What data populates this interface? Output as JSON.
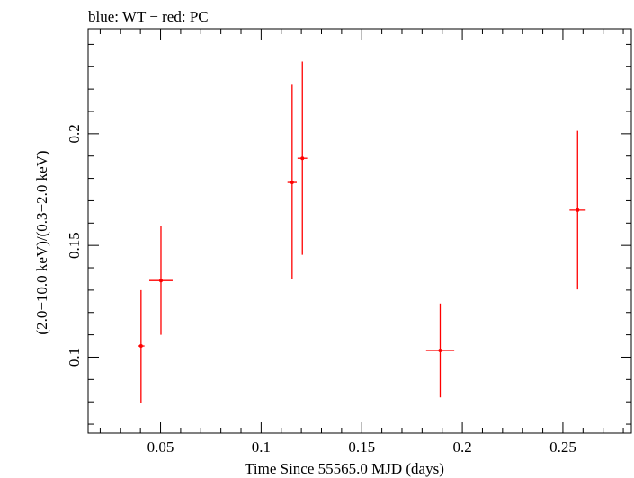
{
  "chart_data": {
    "type": "scatter",
    "title": "blue: WT − red: PC",
    "xlabel": "Time Since 55565.0 MJD (days)",
    "ylabel": "(2.0−10.0 keV)/(0.3−2.0 keV)",
    "xlim": [
      0.014,
      0.284
    ],
    "ylim": [
      0.066,
      0.247
    ],
    "x_ticks": [
      {
        "value": 0.05,
        "label": "0.05"
      },
      {
        "value": 0.1,
        "label": "0.1"
      },
      {
        "value": 0.15,
        "label": "0.15"
      },
      {
        "value": 0.2,
        "label": "0.2"
      },
      {
        "value": 0.25,
        "label": "0.25"
      }
    ],
    "y_ticks": [
      {
        "value": 0.1,
        "label": "0.1"
      },
      {
        "value": 0.15,
        "label": "0.15"
      },
      {
        "value": 0.2,
        "label": "0.2"
      }
    ],
    "grid": false,
    "series": [
      {
        "color": "#ff0000",
        "points": [
          {
            "x": 0.0403,
            "xerr": 0.0017,
            "y": 0.105,
            "yerr_low": 0.0255,
            "yerr_high": 0.025
          },
          {
            "x": 0.0502,
            "xerr": 0.0058,
            "y": 0.1343,
            "yerr_low": 0.0243,
            "yerr_high": 0.0243
          },
          {
            "x": 0.1154,
            "xerr": 0.0023,
            "y": 0.1782,
            "yerr_low": 0.0432,
            "yerr_high": 0.0437
          },
          {
            "x": 0.1205,
            "xerr": 0.0024,
            "y": 0.189,
            "yerr_low": 0.0432,
            "yerr_high": 0.0433
          },
          {
            "x": 0.189,
            "xerr": 0.007,
            "y": 0.103,
            "yerr_low": 0.021,
            "yerr_high": 0.021
          },
          {
            "x": 0.2573,
            "xerr": 0.004,
            "y": 0.1658,
            "yerr_low": 0.0355,
            "yerr_high": 0.0355
          }
        ]
      }
    ]
  }
}
